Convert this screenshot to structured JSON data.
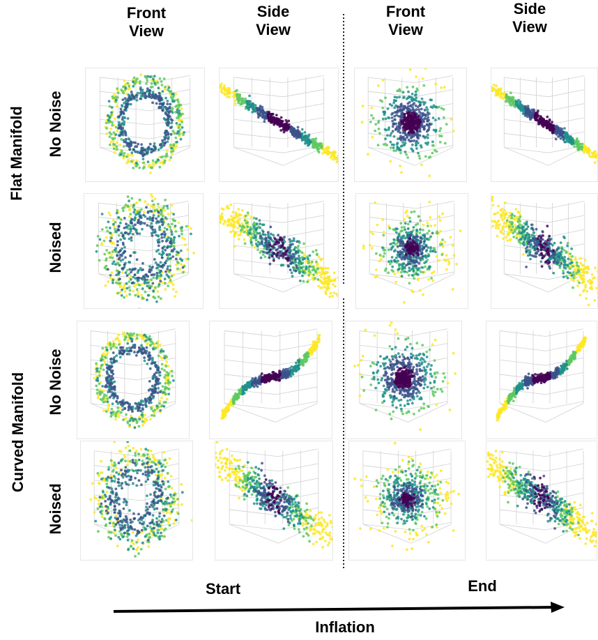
{
  "column_headers": [
    {
      "line1": "Front",
      "line2": "View"
    },
    {
      "line1": "Side",
      "line2": "View"
    },
    {
      "line1": "Front",
      "line2": "View"
    },
    {
      "line1": "Side",
      "line2": "View"
    }
  ],
  "group_labels": {
    "flat": "Flat Manifold",
    "curved": "Curved Manifold"
  },
  "row_labels": [
    "No Noise",
    "Noised",
    "No Noise",
    "Noised"
  ],
  "bottom": {
    "start": "Start",
    "end": "End",
    "arrow_label": "Inflation"
  },
  "colors": {
    "colormap": [
      "#440154",
      "#3b528b",
      "#21918c",
      "#5ec962",
      "#fde725"
    ],
    "axis_grid": "#d0d0d0"
  },
  "panels": [
    {
      "row": 0,
      "col": 0,
      "manifold": "flat",
      "noise": false,
      "stage": "start",
      "view": "front",
      "shape": "ring"
    },
    {
      "row": 0,
      "col": 1,
      "manifold": "flat",
      "noise": false,
      "stage": "start",
      "view": "side",
      "shape": "thin-line"
    },
    {
      "row": 0,
      "col": 2,
      "manifold": "flat",
      "noise": false,
      "stage": "end",
      "view": "front",
      "shape": "blob"
    },
    {
      "row": 0,
      "col": 3,
      "manifold": "flat",
      "noise": false,
      "stage": "end",
      "view": "side",
      "shape": "thin-line"
    },
    {
      "row": 1,
      "col": 0,
      "manifold": "flat",
      "noise": true,
      "stage": "start",
      "view": "front",
      "shape": "noisy-ring"
    },
    {
      "row": 1,
      "col": 1,
      "manifold": "flat",
      "noise": true,
      "stage": "start",
      "view": "side",
      "shape": "thick-line"
    },
    {
      "row": 1,
      "col": 2,
      "manifold": "flat",
      "noise": true,
      "stage": "end",
      "view": "front",
      "shape": "noisy-blob"
    },
    {
      "row": 1,
      "col": 3,
      "manifold": "flat",
      "noise": true,
      "stage": "end",
      "view": "side",
      "shape": "thick-line"
    },
    {
      "row": 2,
      "col": 0,
      "manifold": "curved",
      "noise": false,
      "stage": "start",
      "view": "front",
      "shape": "ring"
    },
    {
      "row": 2,
      "col": 1,
      "manifold": "curved",
      "noise": false,
      "stage": "start",
      "view": "side",
      "shape": "s-curve"
    },
    {
      "row": 2,
      "col": 2,
      "manifold": "curved",
      "noise": false,
      "stage": "end",
      "view": "front",
      "shape": "blob"
    },
    {
      "row": 2,
      "col": 3,
      "manifold": "curved",
      "noise": false,
      "stage": "end",
      "view": "side",
      "shape": "s-curve"
    },
    {
      "row": 3,
      "col": 0,
      "manifold": "curved",
      "noise": true,
      "stage": "start",
      "view": "front",
      "shape": "noisy-ring"
    },
    {
      "row": 3,
      "col": 1,
      "manifold": "curved",
      "noise": true,
      "stage": "start",
      "view": "side",
      "shape": "thick-line"
    },
    {
      "row": 3,
      "col": 2,
      "manifold": "curved",
      "noise": true,
      "stage": "end",
      "view": "front",
      "shape": "noisy-blob"
    },
    {
      "row": 3,
      "col": 3,
      "manifold": "curved",
      "noise": true,
      "stage": "end",
      "view": "side",
      "shape": "thick-line"
    }
  ]
}
